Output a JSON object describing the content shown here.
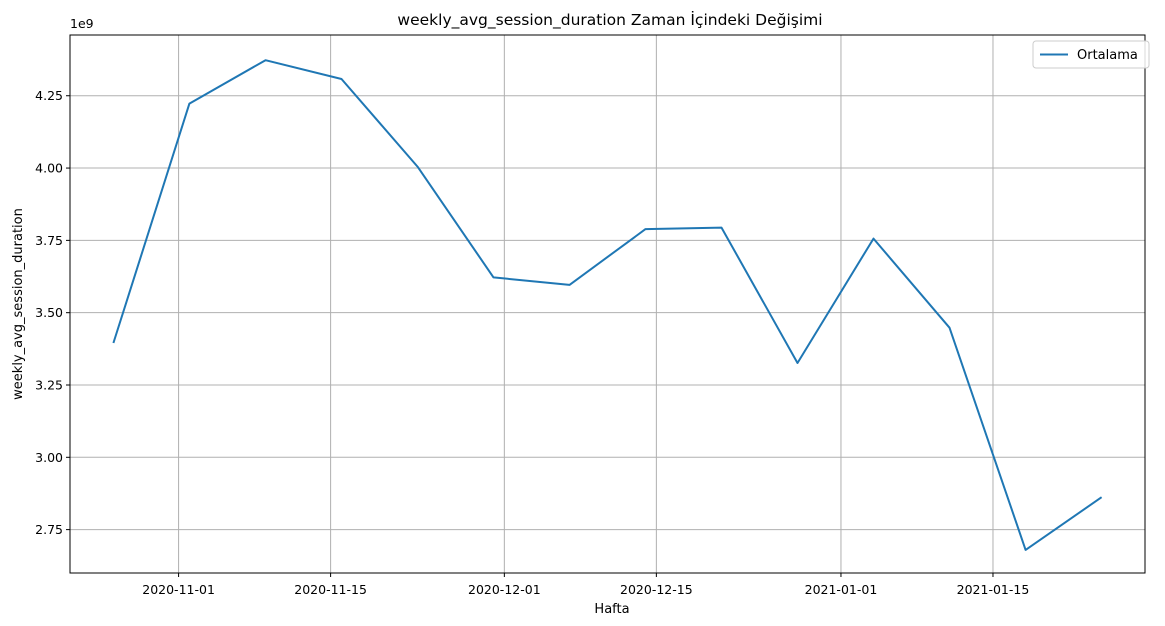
{
  "chart_data": {
    "type": "line",
    "title": "weekly_avg_session_duration Zaman İçindeki Değişimi",
    "xlabel": "Hafta",
    "ylabel": "weekly_avg_session_duration",
    "y_offset_label": "1e9",
    "y_scale": 1000000000,
    "ylim": [
      2.6,
      4.46
    ],
    "xlim": [
      "2020-10-22",
      "2021-01-29"
    ],
    "x_ticks": [
      "2020-11-01",
      "2020-11-15",
      "2020-12-01",
      "2020-12-15",
      "2021-01-01",
      "2021-01-15"
    ],
    "y_ticks": [
      2.75,
      3.0,
      3.25,
      3.5,
      3.75,
      4.0,
      4.25
    ],
    "y_tick_labels": [
      "2.75",
      "3.00",
      "3.25",
      "3.50",
      "3.75",
      "4.00",
      "4.25"
    ],
    "grid": true,
    "legend": "top-right",
    "series": [
      {
        "name": "Ortalama",
        "color": "#1f77b4",
        "x": [
          "2020-10-26",
          "2020-11-02",
          "2020-11-09",
          "2020-11-16",
          "2020-11-23",
          "2020-11-30",
          "2020-12-07",
          "2020-12-14",
          "2020-12-21",
          "2020-12-28",
          "2021-01-04",
          "2021-01-11",
          "2021-01-18",
          "2021-01-25"
        ],
        "values": [
          3.395,
          4.223,
          4.373,
          4.308,
          4.005,
          3.622,
          3.596,
          3.789,
          3.794,
          3.326,
          3.756,
          3.448,
          2.68,
          2.862
        ]
      }
    ]
  }
}
